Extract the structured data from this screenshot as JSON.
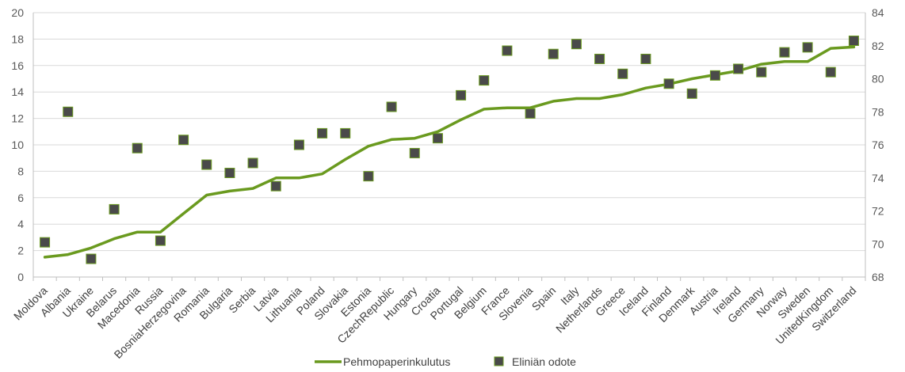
{
  "chart_data": {
    "type": "line",
    "categories": [
      "Moldova",
      "Albania",
      "Ukraine",
      "Belarus",
      "Macedonia",
      "Russia",
      "BosniaHerzegovina",
      "Romania",
      "Bulgaria",
      "Serbia",
      "Latvia",
      "Lithuania",
      "Poland",
      "Slovakia",
      "Estonia",
      "CzechRepublic",
      "Hungary",
      "Croatia",
      "Portugal",
      "Belgium",
      "France",
      "Slovenia",
      "Spain",
      "Italy",
      "Netherlands",
      "Greece",
      "Iceland",
      "Finland",
      "Denmark",
      "Austria",
      "Ireland",
      "Germany",
      "Norway",
      "Sweden",
      "UnitedKingdom",
      "Switzerland"
    ],
    "series": [
      {
        "name": "Pehmopaperinkulutus",
        "type": "line",
        "axis": "left",
        "color": "#6a9a1f",
        "values": [
          1.5,
          1.7,
          2.2,
          2.9,
          3.4,
          3.4,
          4.8,
          6.2,
          6.5,
          6.7,
          7.5,
          7.5,
          7.8,
          8.9,
          9.9,
          10.4,
          10.5,
          11.0,
          11.9,
          12.7,
          12.8,
          12.8,
          13.3,
          13.5,
          13.5,
          13.8,
          14.3,
          14.6,
          15.0,
          15.3,
          15.6,
          16.1,
          16.3,
          16.3,
          17.3,
          17.4
        ]
      },
      {
        "name": "Eliniän odote",
        "type": "scatter",
        "axis": "right",
        "color": "#4a4a4a",
        "edge_color": "#6a9a1f",
        "values": [
          70.1,
          78.0,
          69.1,
          72.1,
          75.8,
          70.2,
          76.3,
          74.8,
          74.3,
          74.9,
          73.5,
          76.0,
          76.7,
          76.7,
          74.1,
          78.3,
          75.5,
          76.4,
          79.0,
          79.9,
          81.7,
          77.9,
          81.5,
          82.1,
          81.2,
          80.3,
          81.2,
          79.7,
          79.1,
          80.2,
          80.6,
          80.4,
          81.6,
          81.9,
          80.4,
          82.3
        ]
      }
    ],
    "y_left": {
      "min": 0,
      "max": 20,
      "ticks": [
        0,
        2,
        4,
        6,
        8,
        10,
        12,
        14,
        16,
        18,
        20
      ]
    },
    "y_right": {
      "min": 68,
      "max": 84,
      "ticks": [
        68,
        70,
        72,
        74,
        76,
        78,
        80,
        82,
        84
      ]
    },
    "grid": true,
    "legend_position": "bottom",
    "colors": {
      "grid": "#d9d9d9",
      "axis": "#bfbfbf",
      "line": "#6a9a1f",
      "marker": "#4a4a4a"
    }
  }
}
